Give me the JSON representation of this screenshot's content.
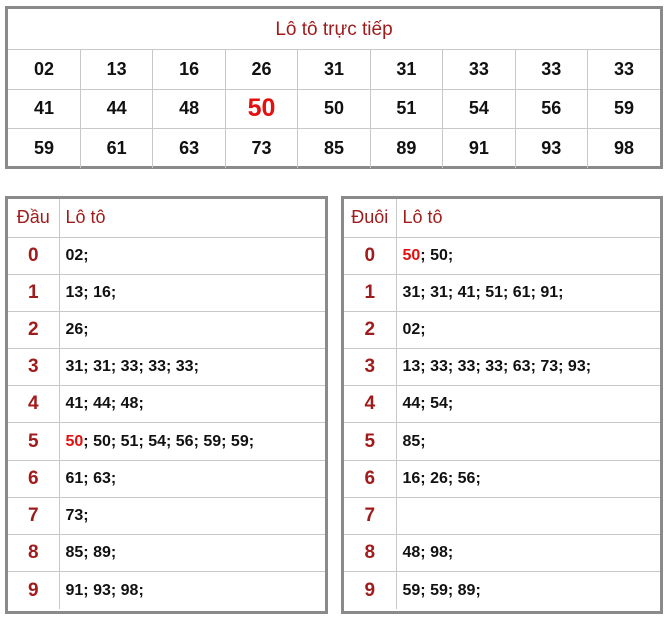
{
  "title": "Lô tô trực tiếp",
  "numbers": [
    [
      "02",
      "13",
      "16",
      "26",
      "31",
      "31",
      "33",
      "33",
      "33"
    ],
    [
      "41",
      "44",
      "48",
      "50",
      "50",
      "51",
      "54",
      "56",
      "59"
    ],
    [
      "59",
      "61",
      "63",
      "73",
      "85",
      "89",
      "91",
      "93",
      "98"
    ]
  ],
  "highlight_color": "#e41010",
  "label_color": "#a01c1c",
  "dau_table": {
    "key_header": "Đầu",
    "value_header": "Lô tô",
    "rows": [
      {
        "key": "0",
        "highlight": "",
        "rest": "02;"
      },
      {
        "key": "1",
        "highlight": "",
        "rest": "13; 16;"
      },
      {
        "key": "2",
        "highlight": "",
        "rest": "26;"
      },
      {
        "key": "3",
        "highlight": "",
        "rest": "31; 31; 33; 33; 33;"
      },
      {
        "key": "4",
        "highlight": "",
        "rest": "41; 44; 48;"
      },
      {
        "key": "5",
        "highlight": "50",
        "rest": "; 50; 51; 54; 56; 59; 59;"
      },
      {
        "key": "6",
        "highlight": "",
        "rest": "61; 63;"
      },
      {
        "key": "7",
        "highlight": "",
        "rest": "73;"
      },
      {
        "key": "8",
        "highlight": "",
        "rest": "85; 89;"
      },
      {
        "key": "9",
        "highlight": "",
        "rest": "91; 93; 98;"
      }
    ]
  },
  "duoi_table": {
    "key_header": "Đuôi",
    "value_header": "Lô tô",
    "rows": [
      {
        "key": "0",
        "highlight": "50",
        "rest": "; 50;"
      },
      {
        "key": "1",
        "highlight": "",
        "rest": "31; 31; 41; 51; 61; 91;"
      },
      {
        "key": "2",
        "highlight": "",
        "rest": "02;"
      },
      {
        "key": "3",
        "highlight": "",
        "rest": "13; 33; 33; 33; 63; 73; 93;"
      },
      {
        "key": "4",
        "highlight": "",
        "rest": "44; 54;"
      },
      {
        "key": "5",
        "highlight": "",
        "rest": "85;"
      },
      {
        "key": "6",
        "highlight": "",
        "rest": "16; 26; 56;"
      },
      {
        "key": "7",
        "highlight": "",
        "rest": ""
      },
      {
        "key": "8",
        "highlight": "",
        "rest": "48; 98;"
      },
      {
        "key": "9",
        "highlight": "",
        "rest": "59; 59; 89;"
      }
    ]
  }
}
